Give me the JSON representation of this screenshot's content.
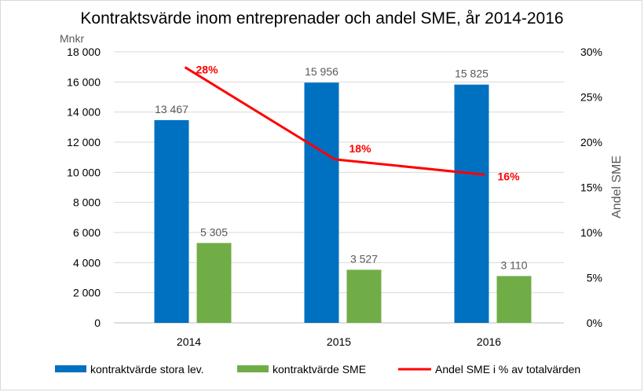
{
  "chart_data": {
    "type": "bar",
    "title": "Kontraktsvärde inom entreprenader och andel SME, år 2014-2016",
    "ylabel": "Mnkr",
    "y2label": "Andel SME",
    "ylim": [
      0,
      18000
    ],
    "y2lim": [
      0,
      30
    ],
    "yticks": [
      "0",
      "2 000",
      "4 000",
      "6 000",
      "8 000",
      "10 000",
      "12 000",
      "14 000",
      "16 000",
      "18 000"
    ],
    "y2ticks": [
      "0%",
      "5%",
      "10%",
      "15%",
      "20%",
      "25%",
      "30%"
    ],
    "categories": [
      "2014",
      "2015",
      "2016"
    ],
    "series": [
      {
        "name": "kontraktvärde stora lev.",
        "type": "bar",
        "color": "#0070c0",
        "values": [
          13467,
          15956,
          15825
        ],
        "labels": [
          "13 467",
          "15 956",
          "15 825"
        ]
      },
      {
        "name": "kontraktvärde SME",
        "type": "bar",
        "color": "#70ad47",
        "values": [
          5305,
          3527,
          3110
        ],
        "labels": [
          "5 305",
          "3 527",
          "3 110"
        ]
      },
      {
        "name": "Andel SME i % av totalvärden",
        "type": "line",
        "axis": "secondary",
        "color": "#ff0000",
        "values": [
          28.3,
          18.1,
          16.4
        ],
        "labels": [
          "28%",
          "18%",
          "16%"
        ]
      }
    ],
    "legend_position": "bottom",
    "grid": true
  }
}
